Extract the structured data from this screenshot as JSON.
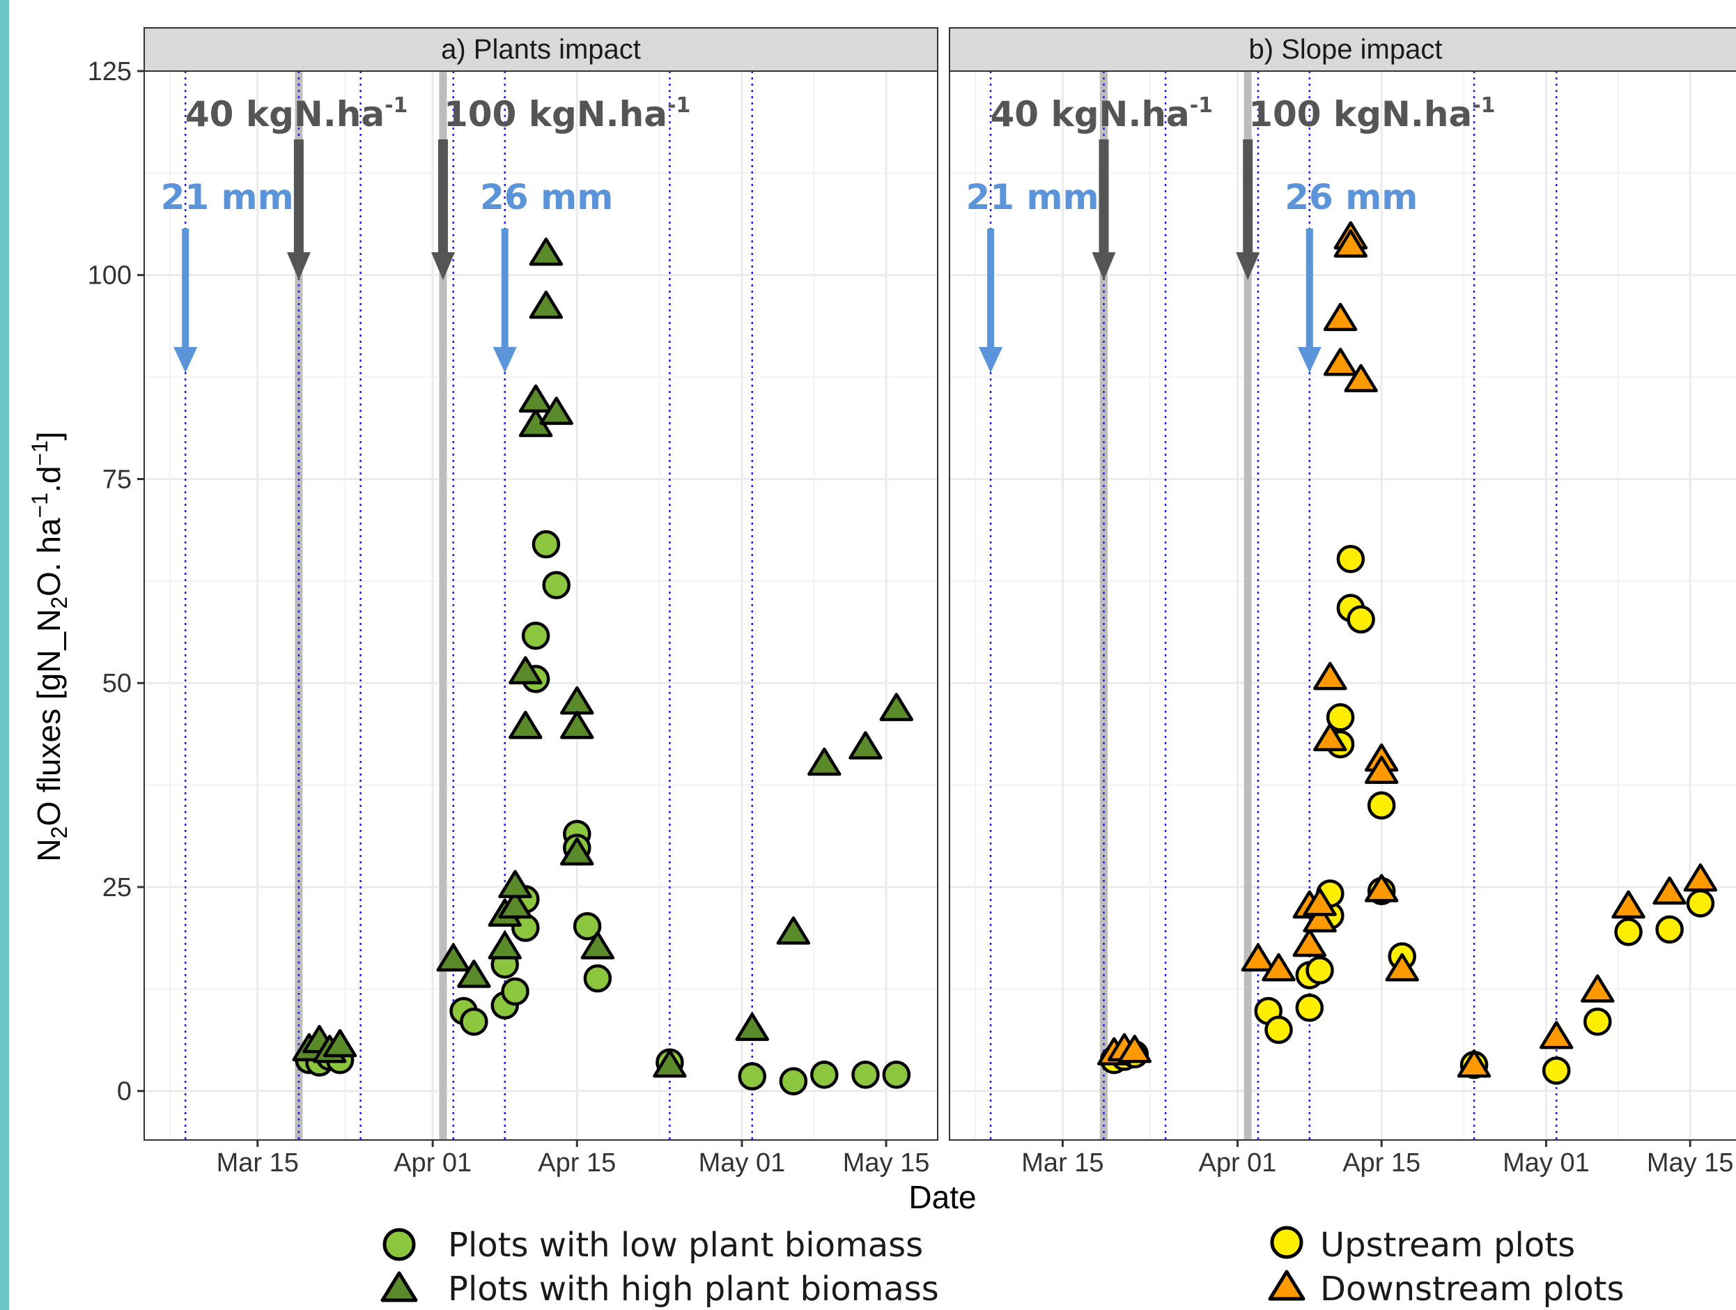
{
  "chart_data": {
    "type": "scatter",
    "xlabel": "Date",
    "ylabel": {
      "p1": "N",
      "s1": "2",
      "p2": "O fluxes [gN_N",
      "s2": "2",
      "p3": "O. ha",
      "s3": "−1",
      "p4": ".d",
      "s4": "−1",
      "p5": "]"
    },
    "ylim": [
      -6,
      125
    ],
    "xlim": [
      "2021-03-04",
      "2021-05-20"
    ],
    "yticks": [
      0,
      25,
      50,
      75,
      100,
      125
    ],
    "xticks": [
      {
        "date": "2021-03-15",
        "label": "Mar 15"
      },
      {
        "date": "2021-04-01",
        "label": "Apr 01"
      },
      {
        "date": "2021-04-15",
        "label": "Apr 15"
      },
      {
        "date": "2021-05-01",
        "label": "May 01"
      },
      {
        "date": "2021-05-15",
        "label": "May 15"
      }
    ],
    "grid": true,
    "legend_placement": "bottom",
    "sampling_dates": [
      "2021-03-08",
      "2021-03-19",
      "2021-03-25",
      "2021-04-03",
      "2021-04-08",
      "2021-04-24",
      "2021-05-02"
    ],
    "fertilization": [
      {
        "date": "2021-03-19",
        "text": "40 kgN.ha",
        "sup": "-1"
      },
      {
        "date": "2021-04-02",
        "text": "100 kgN.ha",
        "sup": "-1"
      }
    ],
    "rain": [
      {
        "date": "2021-03-08",
        "text": "21 mm"
      },
      {
        "date": "2021-04-08",
        "text": "26 mm"
      }
    ],
    "panels": [
      {
        "key": "a",
        "title": "Plants impact",
        "series": [
          {
            "name": "Plots with low plant biomass",
            "shape": "circle",
            "color": "#8cc63f",
            "points": [
              [
                "2021-03-20",
                3.8
              ],
              [
                "2021-03-21",
                3.5
              ],
              [
                "2021-03-22",
                4.2
              ],
              [
                "2021-03-23",
                3.8
              ],
              [
                "2021-04-04",
                9.8
              ],
              [
                "2021-04-05",
                8.5
              ],
              [
                "2021-04-08",
                10.5
              ],
              [
                "2021-04-08",
                15.5
              ],
              [
                "2021-04-09",
                12.2
              ],
              [
                "2021-04-10",
                20
              ],
              [
                "2021-04-10",
                23.5
              ],
              [
                "2021-04-11",
                50.5
              ],
              [
                "2021-04-11",
                55.8
              ],
              [
                "2021-04-12",
                67
              ],
              [
                "2021-04-13",
                62
              ],
              [
                "2021-04-15",
                31.5
              ],
              [
                "2021-04-15",
                29.8
              ],
              [
                "2021-04-16",
                20.2
              ],
              [
                "2021-04-17",
                13.8
              ],
              [
                "2021-04-24",
                3.5
              ],
              [
                "2021-05-02",
                1.8
              ],
              [
                "2021-05-06",
                1.2
              ],
              [
                "2021-05-09",
                2
              ],
              [
                "2021-05-13",
                2
              ],
              [
                "2021-05-16",
                2
              ]
            ]
          },
          {
            "name": "Plots with high plant biomass",
            "shape": "triangle",
            "color": "#5a8a2a",
            "points": [
              [
                "2021-03-20",
                5
              ],
              [
                "2021-03-21",
                6
              ],
              [
                "2021-03-22",
                4.8
              ],
              [
                "2021-03-23",
                5.5
              ],
              [
                "2021-04-03",
                16
              ],
              [
                "2021-04-05",
                14
              ],
              [
                "2021-04-08",
                17.5
              ],
              [
                "2021-04-08",
                21.5
              ],
              [
                "2021-04-09",
                22.5
              ],
              [
                "2021-04-09",
                25
              ],
              [
                "2021-04-10",
                44.5
              ],
              [
                "2021-04-10",
                51.2
              ],
              [
                "2021-04-11",
                81.5
              ],
              [
                "2021-04-11",
                84.5
              ],
              [
                "2021-04-12",
                102.5
              ],
              [
                "2021-04-12",
                96
              ],
              [
                "2021-04-13",
                83
              ],
              [
                "2021-04-15",
                47.5
              ],
              [
                "2021-04-15",
                44.5
              ],
              [
                "2021-04-15",
                29
              ],
              [
                "2021-04-17",
                17.5
              ],
              [
                "2021-04-24",
                3
              ],
              [
                "2021-05-02",
                7.5
              ],
              [
                "2021-05-06",
                19.3
              ],
              [
                "2021-05-09",
                40
              ],
              [
                "2021-05-13",
                42
              ],
              [
                "2021-05-16",
                46.7
              ]
            ]
          }
        ]
      },
      {
        "key": "b",
        "title": "Slope impact",
        "series": [
          {
            "name": "Upstream plots",
            "shape": "circle",
            "color": "#ffee00",
            "points": [
              [
                "2021-03-20",
                3.8
              ],
              [
                "2021-03-21",
                4.2
              ],
              [
                "2021-03-22",
                4.5
              ],
              [
                "2021-04-04",
                9.8
              ],
              [
                "2021-04-05",
                7.5
              ],
              [
                "2021-04-08",
                10.2
              ],
              [
                "2021-04-08",
                14.2
              ],
              [
                "2021-04-09",
                14.8
              ],
              [
                "2021-04-10",
                21.5
              ],
              [
                "2021-04-10",
                24.2
              ],
              [
                "2021-04-11",
                42.5
              ],
              [
                "2021-04-11",
                45.8
              ],
              [
                "2021-04-12",
                65.2
              ],
              [
                "2021-04-12",
                59.2
              ],
              [
                "2021-04-13",
                57.8
              ],
              [
                "2021-04-15",
                35
              ],
              [
                "2021-04-15",
                24.5
              ],
              [
                "2021-04-17",
                16.5
              ],
              [
                "2021-04-24",
                3.2
              ],
              [
                "2021-05-02",
                2.5
              ],
              [
                "2021-05-06",
                8.5
              ],
              [
                "2021-05-09",
                19.5
              ],
              [
                "2021-05-13",
                19.8
              ],
              [
                "2021-05-16",
                23
              ]
            ]
          },
          {
            "name": "Downstream plots",
            "shape": "triangle",
            "color": "#ff9900",
            "points": [
              [
                "2021-03-20",
                4.5
              ],
              [
                "2021-03-21",
                5
              ],
              [
                "2021-03-22",
                4.8
              ],
              [
                "2021-04-03",
                16
              ],
              [
                "2021-04-05",
                14.8
              ],
              [
                "2021-04-08",
                17.8
              ],
              [
                "2021-04-08",
                22.5
              ],
              [
                "2021-04-09",
                20.8
              ],
              [
                "2021-04-09",
                22.8
              ],
              [
                "2021-04-10",
                43
              ],
              [
                "2021-04-10",
                50.5
              ],
              [
                "2021-04-11",
                89
              ],
              [
                "2021-04-11",
                94.5
              ],
              [
                "2021-04-12",
                104.5
              ],
              [
                "2021-04-12",
                103.5
              ],
              [
                "2021-04-13",
                87
              ],
              [
                "2021-04-15",
                40.5
              ],
              [
                "2021-04-15",
                39
              ],
              [
                "2021-04-15",
                24.5
              ],
              [
                "2021-04-17",
                14.8
              ],
              [
                "2021-04-24",
                3
              ],
              [
                "2021-05-02",
                6.5
              ],
              [
                "2021-05-06",
                12.2
              ],
              [
                "2021-05-09",
                22.5
              ],
              [
                "2021-05-13",
                24.2
              ],
              [
                "2021-05-16",
                25.8
              ]
            ]
          }
        ]
      }
    ]
  }
}
